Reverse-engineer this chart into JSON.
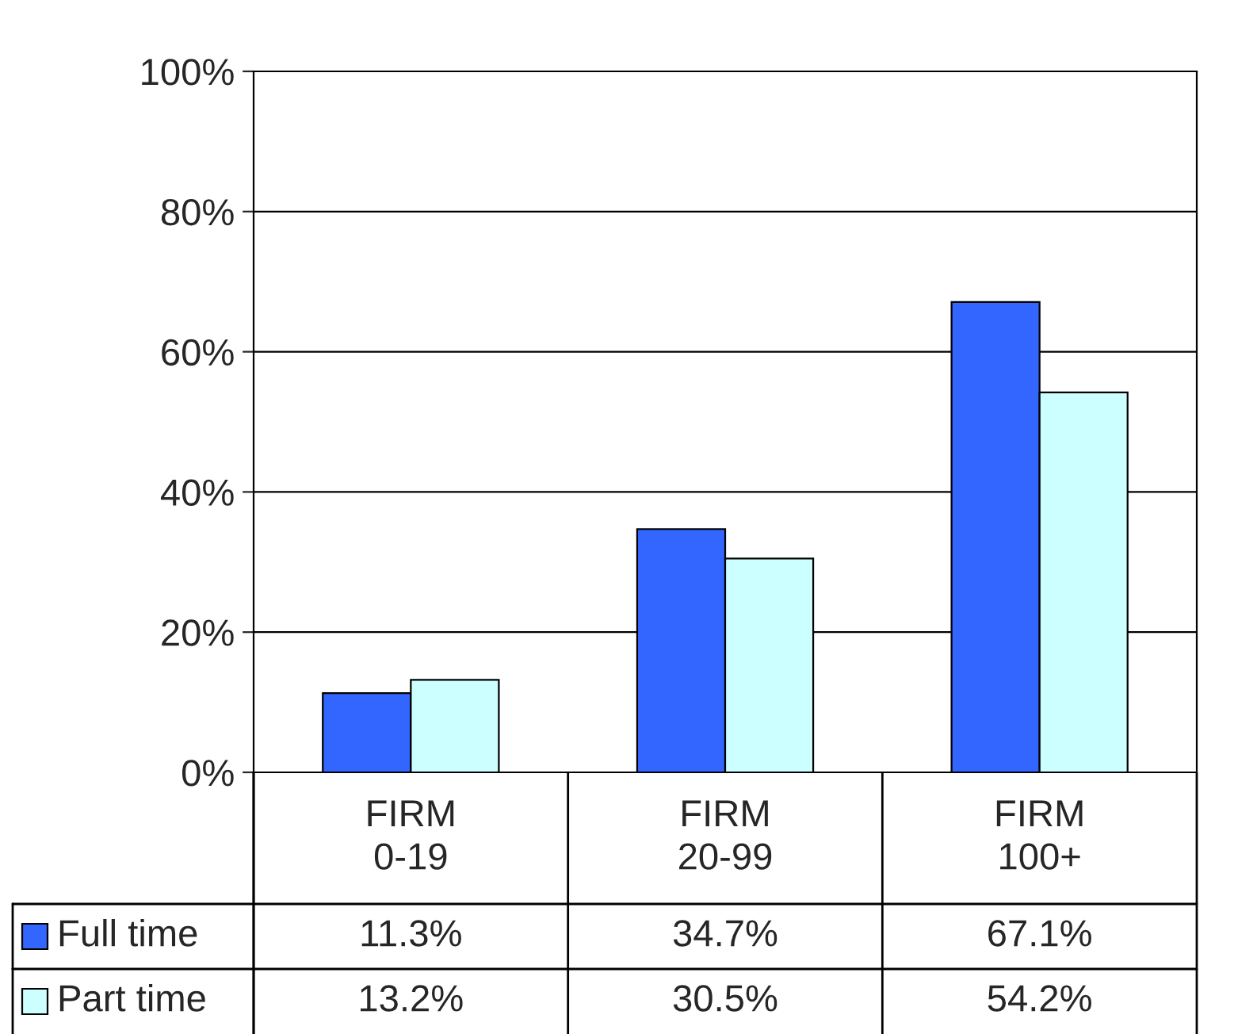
{
  "chart_data": {
    "type": "bar",
    "categories": [
      "FIRM\n0-19",
      "FIRM\n20-99",
      "FIRM\n100+"
    ],
    "series": [
      {
        "name": "Full time",
        "color": "#3366ff",
        "values": [
          11.3,
          34.7,
          67.1
        ],
        "value_labels": [
          "11.3%",
          "34.7%",
          "67.1%"
        ]
      },
      {
        "name": "Part time",
        "color": "#ccffff",
        "values": [
          13.2,
          30.5,
          54.2
        ],
        "value_labels": [
          "13.2%",
          "30.5%",
          "54.2%"
        ]
      }
    ],
    "ylim": [
      0,
      100
    ],
    "yticks": [
      {
        "value": 0,
        "label": "0%"
      },
      {
        "value": 20,
        "label": "20%"
      },
      {
        "value": 40,
        "label": "40%"
      },
      {
        "value": 60,
        "label": "60%"
      },
      {
        "value": 80,
        "label": "80%"
      },
      {
        "value": 100,
        "label": "100%"
      }
    ],
    "grid": "y",
    "legend": "bottom"
  }
}
